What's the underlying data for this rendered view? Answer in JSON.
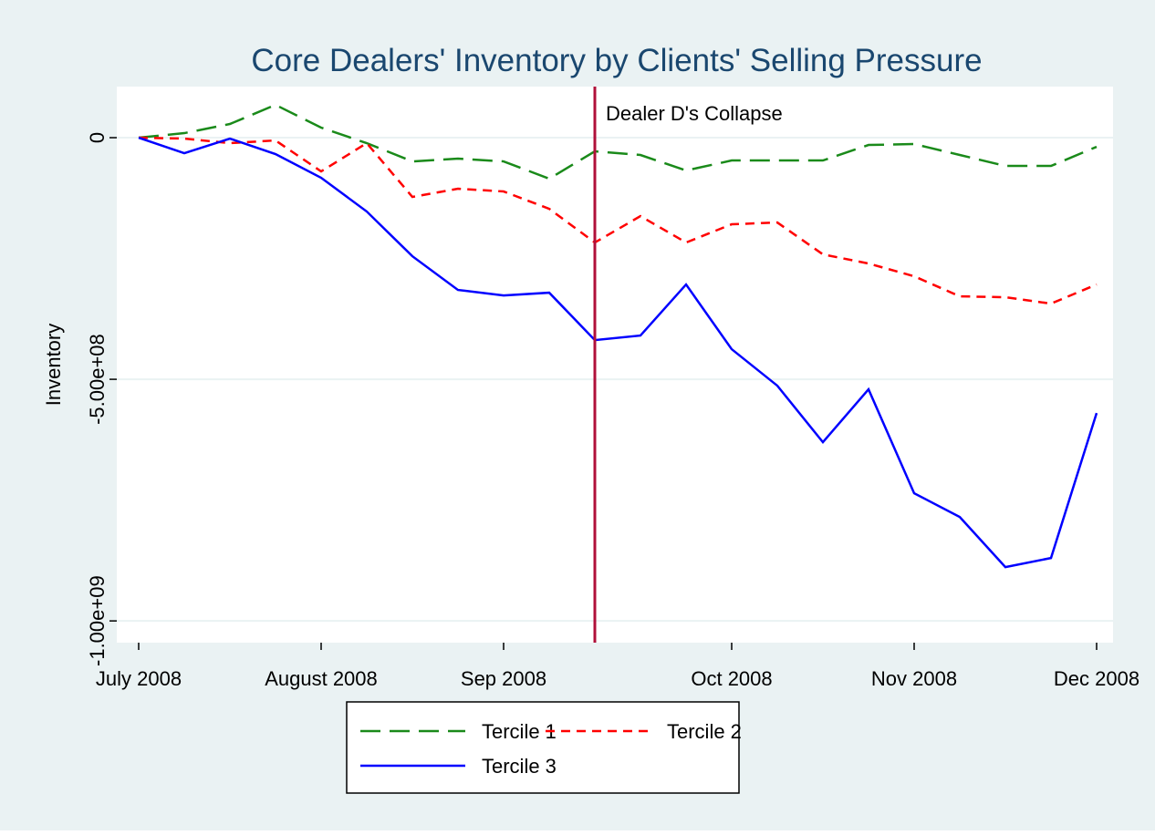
{
  "chart_data": {
    "type": "line",
    "title": "Core Dealers' Inventory by Clients' Selling Pressure",
    "ylabel": "Inventory",
    "x": [
      0,
      1,
      2,
      3,
      4,
      5,
      6,
      7,
      8,
      9,
      10,
      11,
      12,
      13,
      14,
      15,
      16,
      17,
      18,
      19,
      20,
      21
    ],
    "xlim": [
      -0.48,
      21.36
    ],
    "xticks": [
      {
        "value": 0,
        "label": "July 2008"
      },
      {
        "value": 4,
        "label": "August 2008"
      },
      {
        "value": 8,
        "label": "Sep 2008"
      },
      {
        "value": 13,
        "label": "Oct 2008"
      },
      {
        "value": 17,
        "label": "Nov 2008"
      },
      {
        "value": 21,
        "label": "Dec 2008"
      }
    ],
    "ylim": [
      -1045000000,
      105700000
    ],
    "yticks": [
      0,
      {
        "value": -500000000,
        "label": "-5.00e+08"
      },
      {
        "value": -1000000000,
        "label": "-1.00e+09"
      }
    ],
    "grid": true,
    "vline": {
      "x": 10,
      "color": "#b0103a",
      "label": "Dealer D's Collapse"
    },
    "series": [
      {
        "name": "Tercile 1",
        "color": "#1a8a1a",
        "dash": "long",
        "values": [
          0,
          9400000,
          28300000,
          67900000,
          20800000,
          -11300000,
          -49100000,
          -43400000,
          -49100000,
          -84900000,
          -28300000,
          -35800000,
          -67900000,
          -47200000,
          -47200000,
          -47200000,
          -15100000,
          -13200000,
          -35800000,
          -58500000,
          -58500000,
          -18900000
        ]
      },
      {
        "name": "Tercile 2",
        "color": "#ff0000",
        "dash": "short",
        "values": [
          0,
          -1900000,
          -11300000,
          -5700000,
          -69800000,
          -11300000,
          -122600000,
          -105700000,
          -111300000,
          -147200000,
          -217000000,
          -162300000,
          -217000000,
          -179200000,
          -175500000,
          -241500000,
          -260400000,
          -286800000,
          -328300000,
          -330200000,
          -343400000,
          -303800000
        ]
      },
      {
        "name": "Tercile 3",
        "color": "#0000ff",
        "dash": "solid",
        "values": [
          0,
          -32100000,
          -1900000,
          -34000000,
          -83000000,
          -152800000,
          -245300000,
          -315100000,
          -326400000,
          -320800000,
          -418900000,
          -409400000,
          -303800000,
          -437700000,
          -513200000,
          -630200000,
          -520800000,
          -735800000,
          -784900000,
          -888700000,
          -869800000,
          -569800000
        ]
      }
    ]
  }
}
